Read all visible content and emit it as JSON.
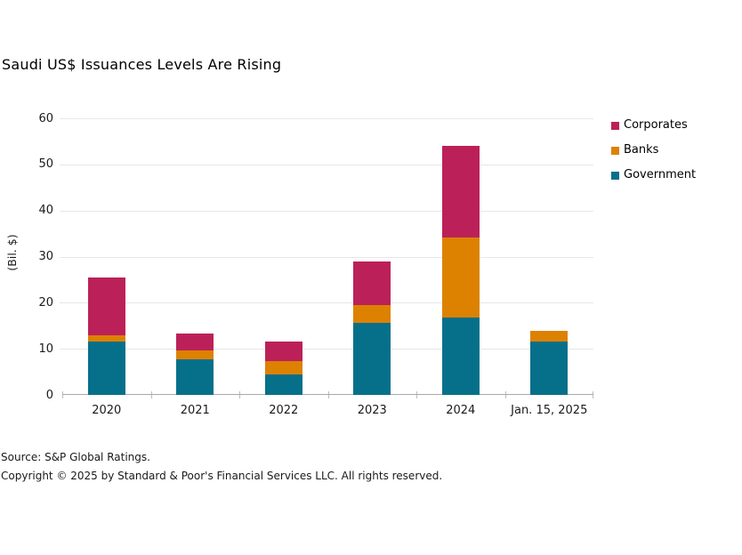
{
  "footer": {
    "source": "Source: S&P Global Ratings.",
    "copyright": "Copyright © 2025 by Standard & Poor's Financial Services LLC. All rights reserved."
  },
  "chart_data": {
    "type": "bar",
    "stacked": true,
    "title": "Saudi US$ Issuances Levels Are Rising",
    "xlabel": "",
    "ylabel": "(Bil. $)",
    "ylim": [
      0,
      60
    ],
    "ytick_step": 10,
    "grid": "horizontal",
    "legend_position": "right",
    "categories": [
      "2020",
      "2021",
      "2022",
      "2023",
      "2024",
      "Jan. 15, 2025"
    ],
    "series": [
      {
        "name": "Government",
        "color": "#06708a",
        "values": [
          11.5,
          7.8,
          4.4,
          15.6,
          16.7,
          11.6
        ]
      },
      {
        "name": "Banks",
        "color": "#dd8100",
        "values": [
          1.4,
          1.9,
          3.0,
          3.9,
          17.4,
          2.2
        ]
      },
      {
        "name": "Corporates",
        "color": "#bb2158",
        "values": [
          12.6,
          3.6,
          4.1,
          9.4,
          19.9,
          0
        ]
      }
    ],
    "legend_order": [
      "Corporates",
      "Banks",
      "Government"
    ],
    "totals": [
      25.5,
      13.3,
      11.5,
      28.9,
      54.0,
      13.8
    ]
  }
}
